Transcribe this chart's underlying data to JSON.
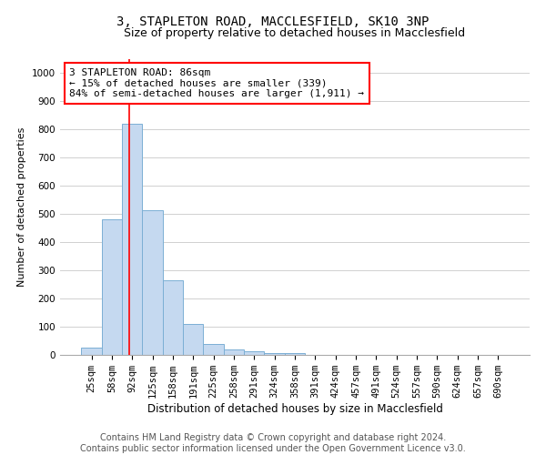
{
  "title": "3, STAPLETON ROAD, MACCLESFIELD, SK10 3NP",
  "subtitle": "Size of property relative to detached houses in Macclesfield",
  "xlabel": "Distribution of detached houses by size in Macclesfield",
  "ylabel": "Number of detached properties",
  "categories": [
    "25sqm",
    "58sqm",
    "92sqm",
    "125sqm",
    "158sqm",
    "191sqm",
    "225sqm",
    "258sqm",
    "291sqm",
    "324sqm",
    "358sqm",
    "391sqm",
    "424sqm",
    "457sqm",
    "491sqm",
    "524sqm",
    "557sqm",
    "590sqm",
    "624sqm",
    "657sqm",
    "690sqm"
  ],
  "bar_values": [
    25,
    480,
    820,
    515,
    265,
    110,
    38,
    20,
    12,
    6,
    5,
    0,
    0,
    0,
    0,
    0,
    0,
    0,
    0,
    0,
    0
  ],
  "bar_color": "#c5d9f0",
  "bar_edgecolor": "#7bafd4",
  "bar_linewidth": 0.7,
  "annotation_text": "3 STAPLETON ROAD: 86sqm\n← 15% of detached houses are smaller (339)\n84% of semi-detached houses are larger (1,911) →",
  "annotation_box_color": "white",
  "annotation_box_edgecolor": "red",
  "ylim": [
    0,
    1050
  ],
  "yticks": [
    0,
    100,
    200,
    300,
    400,
    500,
    600,
    700,
    800,
    900,
    1000
  ],
  "footer_line1": "Contains HM Land Registry data © Crown copyright and database right 2024.",
  "footer_line2": "Contains public sector information licensed under the Open Government Licence v3.0.",
  "title_fontsize": 10,
  "subtitle_fontsize": 9,
  "xlabel_fontsize": 8.5,
  "ylabel_fontsize": 8,
  "tick_fontsize": 7.5,
  "annotation_fontsize": 8,
  "footer_fontsize": 7
}
